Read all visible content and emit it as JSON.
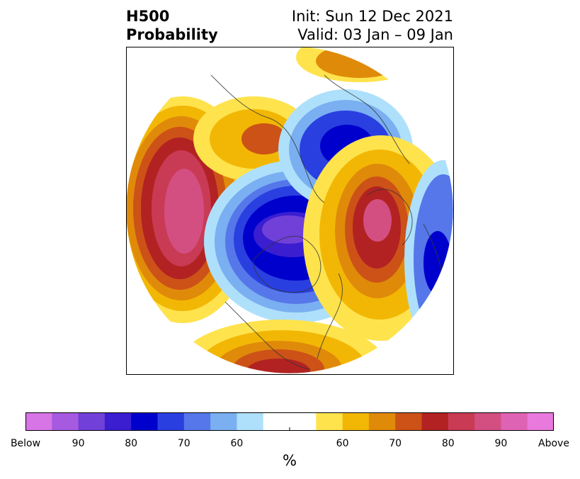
{
  "title": {
    "left_line1": "H500",
    "left_line2": "Probability",
    "right_line1": "Init: Sun 12 Dec 2021",
    "right_line2": "Valid: 03 Jan – 09 Jan"
  },
  "colorbar": {
    "units": "%",
    "tick_labels": [
      "Below",
      "90",
      "80",
      "70",
      "60",
      "60",
      "70",
      "80",
      "90",
      "Above"
    ],
    "colors": [
      "#d775e6",
      "#a55ae0",
      "#7040d8",
      "#3a1ed0",
      "#0000cd",
      "#2a3fe0",
      "#5577ea",
      "#7aaff2",
      "#aee0fb",
      "#ffffff",
      "#ffffff",
      "#ffe34d",
      "#f2b705",
      "#e08a0a",
      "#cc5218",
      "#b22222",
      "#c93a55",
      "#d34f82",
      "#de63b4",
      "#ea79dd"
    ]
  },
  "map": {
    "projection": "polar-stereographic",
    "region": "Northern Hemisphere",
    "palette": {
      "below_strong": "#3a1ed0",
      "below_core": "#7040d8",
      "below_mid": "#0000cd",
      "below_light": "#aee0fb",
      "above_light": "#ffe34d",
      "above_mid": "#e08a0a",
      "above_strong": "#b22222",
      "above_core": "#d34f82"
    }
  }
}
